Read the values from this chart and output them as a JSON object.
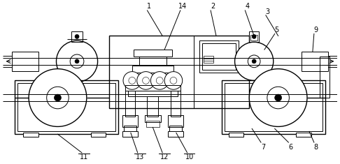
{
  "bg_color": "#ffffff",
  "lc": "#000000",
  "lw": 1.0,
  "tlw": 0.7,
  "figsize": [
    4.86,
    2.35
  ],
  "dpi": 100
}
